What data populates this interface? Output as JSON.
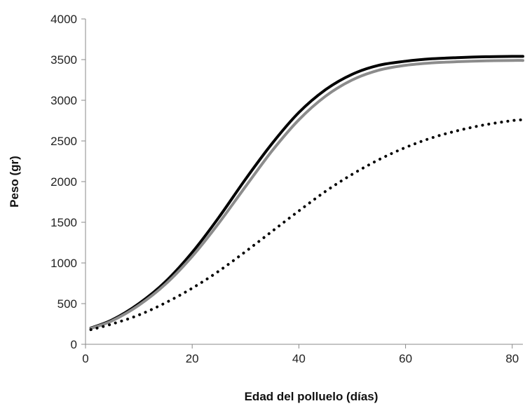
{
  "chart_data": {
    "type": "line",
    "title": "",
    "xlabel": "Edad del polluelo (días)",
    "ylabel": "Peso (gr)",
    "xlim": [
      0,
      82
    ],
    "ylim": [
      0,
      4000
    ],
    "xticks": [
      0,
      20,
      40,
      60,
      80
    ],
    "yticks": [
      0,
      500,
      1000,
      1500,
      2000,
      2500,
      3000,
      3500,
      4000
    ],
    "grid": false,
    "legend": "none",
    "series": [
      {
        "style": "solid",
        "color": "#000000",
        "x": [
          1,
          5,
          10,
          15,
          20,
          25,
          30,
          35,
          40,
          45,
          50,
          55,
          60,
          65,
          70,
          75,
          80,
          82
        ],
        "y": [
          200,
          300,
          500,
          770,
          1130,
          1560,
          2030,
          2470,
          2850,
          3130,
          3320,
          3430,
          3480,
          3510,
          3525,
          3535,
          3540,
          3540
        ]
      },
      {
        "style": "solid",
        "color": "#8c8c8c",
        "x": [
          1,
          5,
          10,
          15,
          20,
          25,
          30,
          35,
          40,
          45,
          50,
          55,
          60,
          65,
          70,
          75,
          80,
          82
        ],
        "y": [
          195,
          290,
          480,
          740,
          1080,
          1490,
          1940,
          2380,
          2760,
          3050,
          3250,
          3370,
          3430,
          3460,
          3475,
          3485,
          3490,
          3490
        ]
      },
      {
        "style": "dotted",
        "color": "#000000",
        "x": [
          1,
          5,
          10,
          15,
          20,
          25,
          30,
          35,
          40,
          45,
          50,
          55,
          60,
          65,
          70,
          75,
          80,
          82
        ],
        "y": [
          180,
          250,
          360,
          510,
          690,
          900,
          1140,
          1390,
          1640,
          1880,
          2090,
          2270,
          2420,
          2540,
          2630,
          2700,
          2750,
          2760
        ]
      }
    ]
  }
}
